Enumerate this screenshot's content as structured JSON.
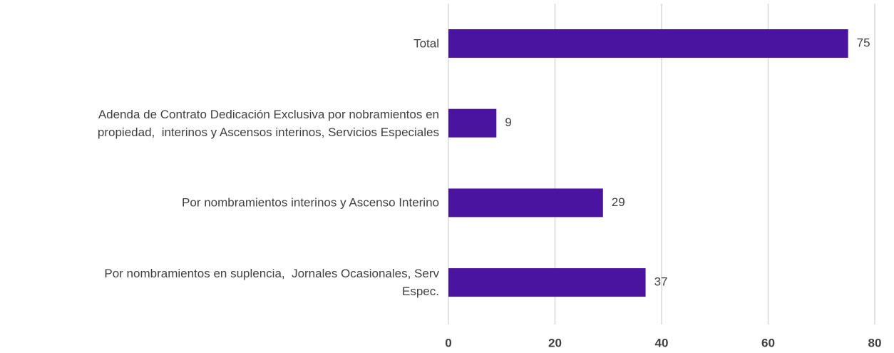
{
  "chart_data": {
    "type": "barh",
    "categories": [
      "Total",
      "Adenda de Contrato Dedicación Exclusiva por nobramientos en\npropiedad,  interinos y Ascensos interinos, Servicios Especiales",
      "Por nombramientos interinos y Ascenso Interino",
      "Por nombramientos en suplencia,  Jornales Ocasionales, Serv\nEspec."
    ],
    "values": [
      75,
      9,
      29,
      37
    ],
    "color": "#4a14a0",
    "xlim": [
      0,
      80
    ],
    "xticks": [
      0,
      20,
      40,
      60,
      80
    ],
    "grid": true
  }
}
